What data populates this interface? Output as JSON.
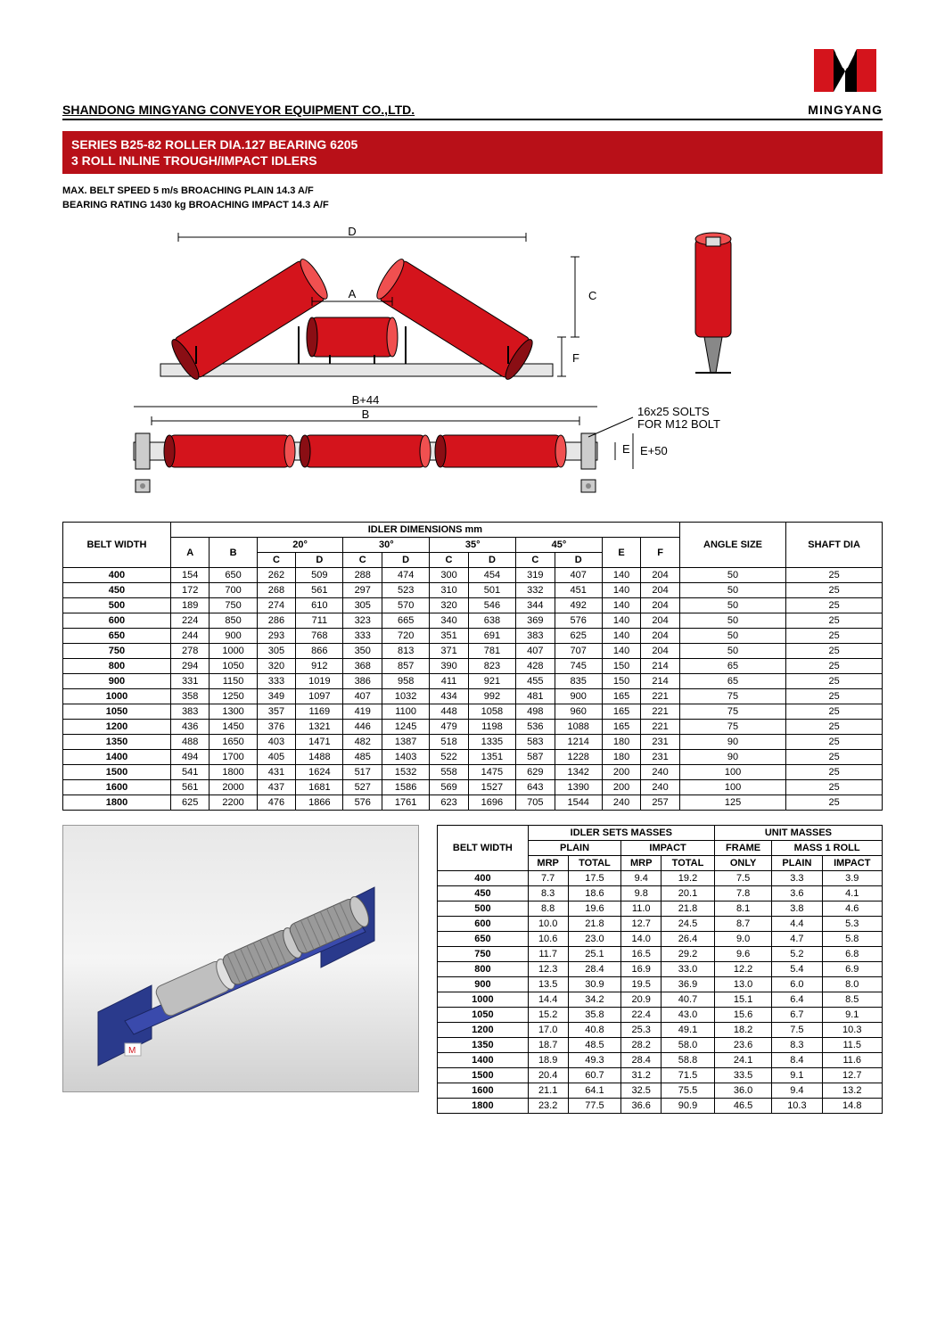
{
  "header": {
    "company": "SHANDONG MINGYANG CONVEYOR EQUIPMENT CO.,LTD.",
    "logo_text": "MINGYANG"
  },
  "title": {
    "line1": "SERIES B25-82 ROLLER DIA.127 BEARING 6205",
    "line2": "3 ROLL INLINE TROUGH/IMPACT IDLERS"
  },
  "specs": {
    "line1": "MAX. BELT SPEED 5 m/s BROACHING PLAIN 14.3 A/F",
    "line2": "BEARING RATING 1430 kg BROACHING IMPACT 14.3 A/F"
  },
  "diagram_labels": {
    "A": "A",
    "B": "B",
    "B44": "B+44",
    "C": "C",
    "D": "D",
    "E": "E",
    "E50": "E+50",
    "F": "F",
    "slots": "16x25 SOLTS",
    "bolt": "FOR M12 BOLT"
  },
  "colors": {
    "brand_red": "#b81018",
    "roller_red": "#d4141c",
    "roller_dark": "#8a0e14",
    "frame_blue": "#2a3a8c",
    "frame_gray": "#707080"
  },
  "dim_table": {
    "header_belt": "BELT WIDTH",
    "header_main": "IDLER DIMENSIONS mm",
    "header_angle": "ANGLE SIZE",
    "header_shaft": "SHAFT DIA",
    "angles": [
      "20°",
      "30°",
      "35°",
      "45°"
    ],
    "subcols": [
      "A",
      "B",
      "C",
      "D",
      "C",
      "D",
      "C",
      "D",
      "C",
      "D",
      "E",
      "F"
    ],
    "rows": [
      {
        "bw": "400",
        "v": [
          "154",
          "650",
          "262",
          "509",
          "288",
          "474",
          "300",
          "454",
          "319",
          "407",
          "140",
          "204",
          "50",
          "25"
        ]
      },
      {
        "bw": "450",
        "v": [
          "172",
          "700",
          "268",
          "561",
          "297",
          "523",
          "310",
          "501",
          "332",
          "451",
          "140",
          "204",
          "50",
          "25"
        ]
      },
      {
        "bw": "500",
        "v": [
          "189",
          "750",
          "274",
          "610",
          "305",
          "570",
          "320",
          "546",
          "344",
          "492",
          "140",
          "204",
          "50",
          "25"
        ]
      },
      {
        "bw": "600",
        "v": [
          "224",
          "850",
          "286",
          "711",
          "323",
          "665",
          "340",
          "638",
          "369",
          "576",
          "140",
          "204",
          "50",
          "25"
        ]
      },
      {
        "bw": "650",
        "v": [
          "244",
          "900",
          "293",
          "768",
          "333",
          "720",
          "351",
          "691",
          "383",
          "625",
          "140",
          "204",
          "50",
          "25"
        ]
      },
      {
        "bw": "750",
        "v": [
          "278",
          "1000",
          "305",
          "866",
          "350",
          "813",
          "371",
          "781",
          "407",
          "707",
          "140",
          "204",
          "50",
          "25"
        ]
      },
      {
        "bw": "800",
        "v": [
          "294",
          "1050",
          "320",
          "912",
          "368",
          "857",
          "390",
          "823",
          "428",
          "745",
          "150",
          "214",
          "65",
          "25"
        ]
      },
      {
        "bw": "900",
        "v": [
          "331",
          "1150",
          "333",
          "1019",
          "386",
          "958",
          "411",
          "921",
          "455",
          "835",
          "150",
          "214",
          "65",
          "25"
        ]
      },
      {
        "bw": "1000",
        "v": [
          "358",
          "1250",
          "349",
          "1097",
          "407",
          "1032",
          "434",
          "992",
          "481",
          "900",
          "165",
          "221",
          "75",
          "25"
        ]
      },
      {
        "bw": "1050",
        "v": [
          "383",
          "1300",
          "357",
          "1169",
          "419",
          "1100",
          "448",
          "1058",
          "498",
          "960",
          "165",
          "221",
          "75",
          "25"
        ]
      },
      {
        "bw": "1200",
        "v": [
          "436",
          "1450",
          "376",
          "1321",
          "446",
          "1245",
          "479",
          "1198",
          "536",
          "1088",
          "165",
          "221",
          "75",
          "25"
        ]
      },
      {
        "bw": "1350",
        "v": [
          "488",
          "1650",
          "403",
          "1471",
          "482",
          "1387",
          "518",
          "1335",
          "583",
          "1214",
          "180",
          "231",
          "90",
          "25"
        ]
      },
      {
        "bw": "1400",
        "v": [
          "494",
          "1700",
          "405",
          "1488",
          "485",
          "1403",
          "522",
          "1351",
          "587",
          "1228",
          "180",
          "231",
          "90",
          "25"
        ]
      },
      {
        "bw": "1500",
        "v": [
          "541",
          "1800",
          "431",
          "1624",
          "517",
          "1532",
          "558",
          "1475",
          "629",
          "1342",
          "200",
          "240",
          "100",
          "25"
        ]
      },
      {
        "bw": "1600",
        "v": [
          "561",
          "2000",
          "437",
          "1681",
          "527",
          "1586",
          "569",
          "1527",
          "643",
          "1390",
          "200",
          "240",
          "100",
          "25"
        ]
      },
      {
        "bw": "1800",
        "v": [
          "625",
          "2200",
          "476",
          "1866",
          "576",
          "1761",
          "623",
          "1696",
          "705",
          "1544",
          "240",
          "257",
          "125",
          "25"
        ]
      }
    ]
  },
  "mass_table": {
    "header_belt": "BELT WIDTH",
    "header_sets": "IDLER SETS MASSES",
    "header_unit": "UNIT MASSES",
    "sub_plain": "PLAIN",
    "sub_impact": "IMPACT",
    "sub_frame": "FRAME",
    "sub_mass1": "MASS 1 ROLL",
    "sub_mrp": "MRP",
    "sub_total": "TOTAL",
    "sub_only": "ONLY",
    "rows": [
      {
        "bw": "400",
        "v": [
          "7.7",
          "17.5",
          "9.4",
          "19.2",
          "7.5",
          "3.3",
          "3.9"
        ]
      },
      {
        "bw": "450",
        "v": [
          "8.3",
          "18.6",
          "9.8",
          "20.1",
          "7.8",
          "3.6",
          "4.1"
        ]
      },
      {
        "bw": "500",
        "v": [
          "8.8",
          "19.6",
          "11.0",
          "21.8",
          "8.1",
          "3.8",
          "4.6"
        ]
      },
      {
        "bw": "600",
        "v": [
          "10.0",
          "21.8",
          "12.7",
          "24.5",
          "8.7",
          "4.4",
          "5.3"
        ]
      },
      {
        "bw": "650",
        "v": [
          "10.6",
          "23.0",
          "14.0",
          "26.4",
          "9.0",
          "4.7",
          "5.8"
        ]
      },
      {
        "bw": "750",
        "v": [
          "11.7",
          "25.1",
          "16.5",
          "29.2",
          "9.6",
          "5.2",
          "6.8"
        ]
      },
      {
        "bw": "800",
        "v": [
          "12.3",
          "28.4",
          "16.9",
          "33.0",
          "12.2",
          "5.4",
          "6.9"
        ]
      },
      {
        "bw": "900",
        "v": [
          "13.5",
          "30.9",
          "19.5",
          "36.9",
          "13.0",
          "6.0",
          "8.0"
        ]
      },
      {
        "bw": "1000",
        "v": [
          "14.4",
          "34.2",
          "20.9",
          "40.7",
          "15.1",
          "6.4",
          "8.5"
        ]
      },
      {
        "bw": "1050",
        "v": [
          "15.2",
          "35.8",
          "22.4",
          "43.0",
          "15.6",
          "6.7",
          "9.1"
        ]
      },
      {
        "bw": "1200",
        "v": [
          "17.0",
          "40.8",
          "25.3",
          "49.1",
          "18.2",
          "7.5",
          "10.3"
        ]
      },
      {
        "bw": "1350",
        "v": [
          "18.7",
          "48.5",
          "28.2",
          "58.0",
          "23.6",
          "8.3",
          "11.5"
        ]
      },
      {
        "bw": "1400",
        "v": [
          "18.9",
          "49.3",
          "28.4",
          "58.8",
          "24.1",
          "8.4",
          "11.6"
        ]
      },
      {
        "bw": "1500",
        "v": [
          "20.4",
          "60.7",
          "31.2",
          "71.5",
          "33.5",
          "9.1",
          "12.7"
        ]
      },
      {
        "bw": "1600",
        "v": [
          "21.1",
          "64.1",
          "32.5",
          "75.5",
          "36.0",
          "9.4",
          "13.2"
        ]
      },
      {
        "bw": "1800",
        "v": [
          "23.2",
          "77.5",
          "36.6",
          "90.9",
          "46.5",
          "10.3",
          "14.8"
        ]
      }
    ]
  }
}
